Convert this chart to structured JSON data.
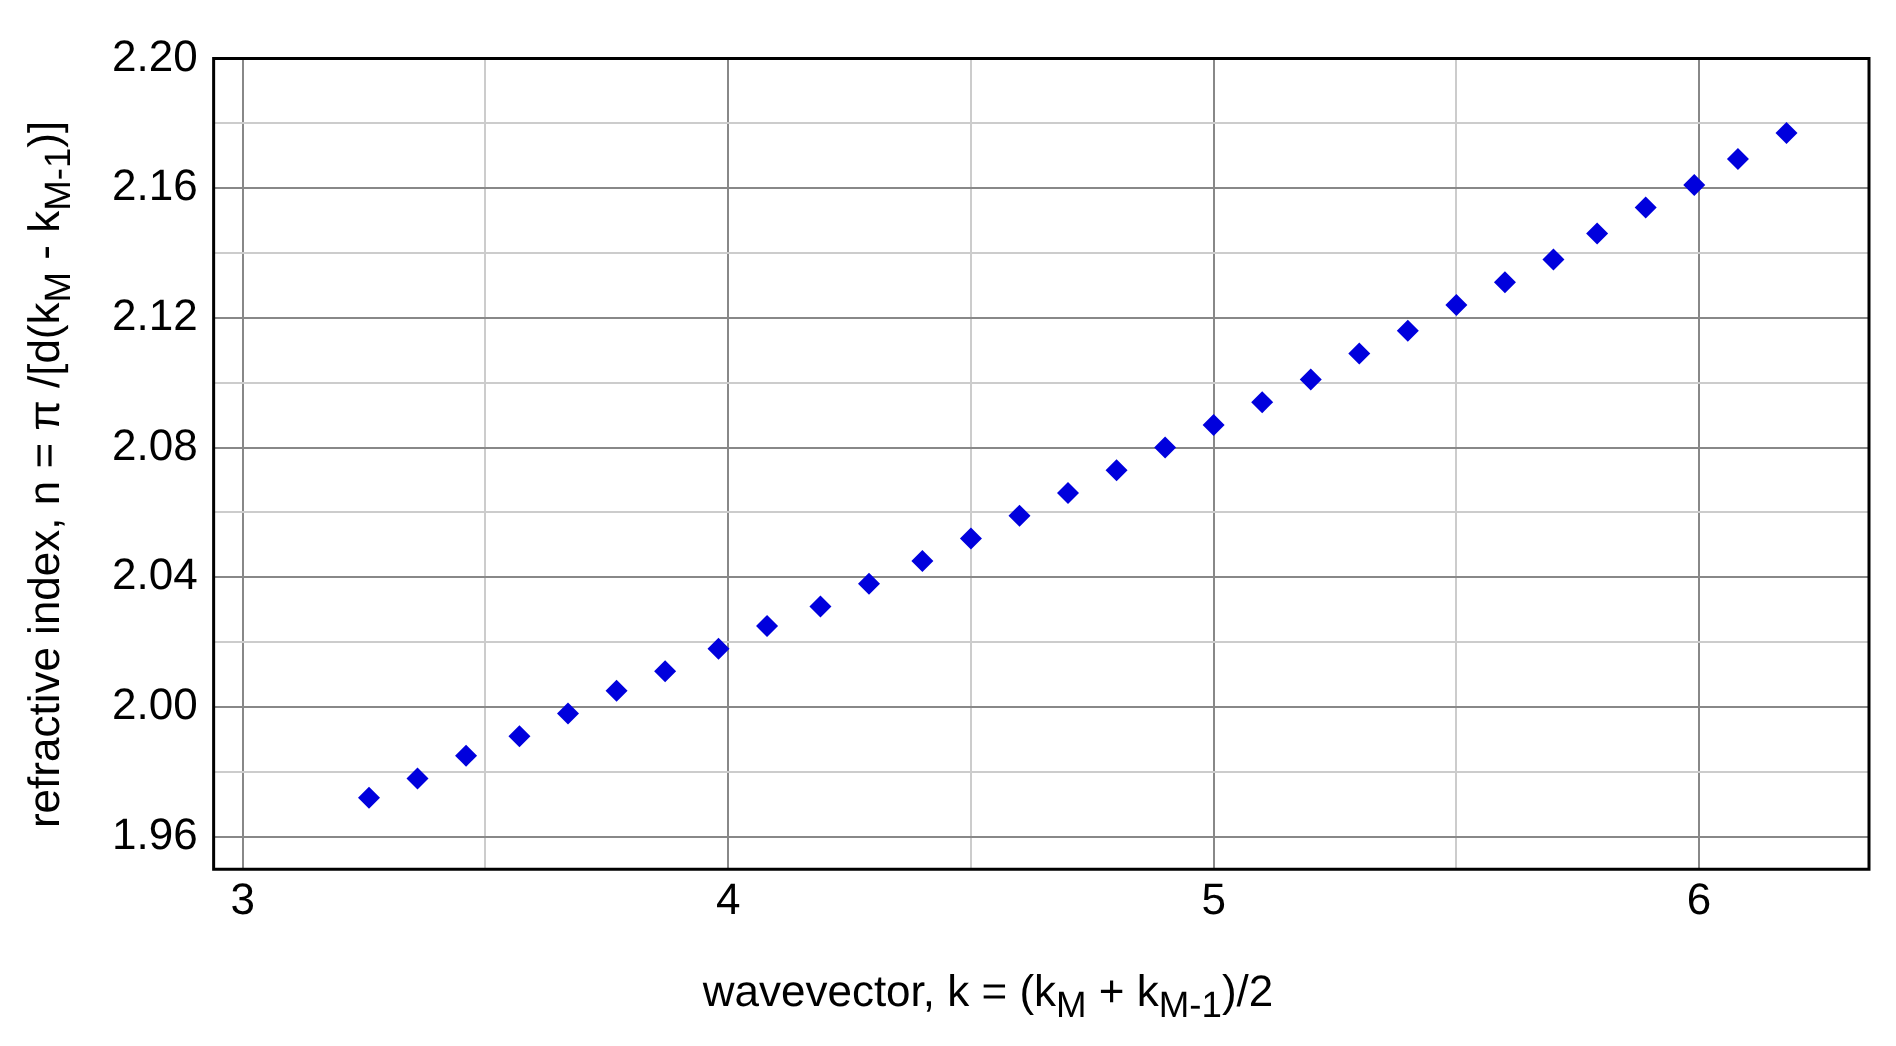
{
  "chart_data": {
    "type": "scatter",
    "xlabel": "wavevector, k =  (k$_{M}$  + k$_{M-1}$)/2",
    "ylabel": "refractive index, n = π /[d(k$_{M}$ - k$_{M-1}$)]",
    "x": [
      3.26,
      3.36,
      3.46,
      3.57,
      3.67,
      3.77,
      3.87,
      3.98,
      4.08,
      4.19,
      4.29,
      4.4,
      4.5,
      4.6,
      4.7,
      4.8,
      4.9,
      5.0,
      5.1,
      5.2,
      5.3,
      5.4,
      5.5,
      5.6,
      5.7,
      5.79,
      5.89,
      5.99,
      6.08,
      6.18
    ],
    "series": [
      {
        "color": "#0000dd",
        "values": [
          1.972,
          1.978,
          1.985,
          1.991,
          1.998,
          2.005,
          2.011,
          2.018,
          2.025,
          2.031,
          2.038,
          2.045,
          2.052,
          2.059,
          2.066,
          2.073,
          2.08,
          2.087,
          2.094,
          2.101,
          2.109,
          2.116,
          2.124,
          2.131,
          2.138,
          2.146,
          2.154,
          2.161,
          2.169,
          2.177
        ]
      }
    ],
    "xlim": [
      2.94,
      6.35
    ],
    "xticks": [
      3,
      {
        "value": 3.5,
        "label": null
      },
      4,
      {
        "value": 4.5,
        "label": null
      },
      5,
      {
        "value": 5.5,
        "label": null
      },
      6
    ],
    "ylim": [
      1.95,
      2.2
    ],
    "yticks": [
      {
        "value": 1.96,
        "label": "1.96"
      },
      {
        "value": 1.98,
        "label": null
      },
      {
        "value": 2.0,
        "label": "2.00"
      },
      {
        "value": 2.02,
        "label": null
      },
      {
        "value": 2.04,
        "label": "2.04"
      },
      {
        "value": 2.06,
        "label": null
      },
      {
        "value": 2.08,
        "label": "2.08"
      },
      {
        "value": 2.1,
        "label": null
      },
      {
        "value": 2.12,
        "label": "2.12"
      },
      {
        "value": 2.14,
        "label": null
      },
      {
        "value": 2.16,
        "label": "2.16"
      },
      {
        "value": 2.18,
        "label": null
      },
      {
        "value": 2.2,
        "label": "2.20"
      }
    ],
    "grid": true,
    "legend": false,
    "marker": "diamond"
  }
}
